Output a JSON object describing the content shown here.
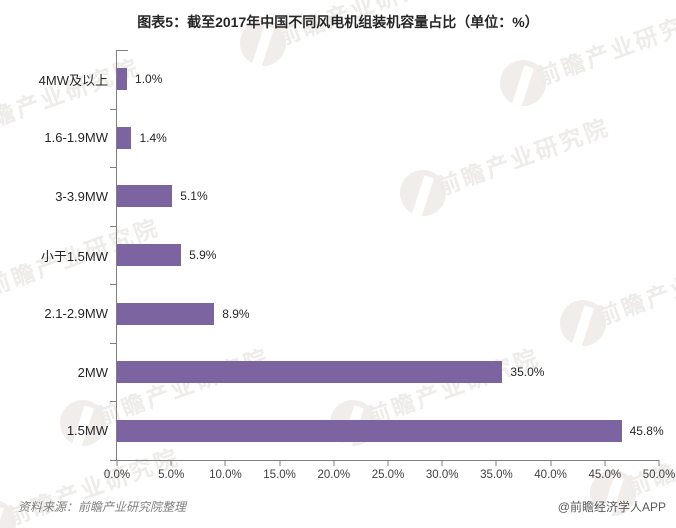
{
  "title": "图表5：截至2017年中国不同风电机组装机容量占比（单位：%）",
  "chart_data": {
    "type": "bar",
    "orientation": "horizontal",
    "title": "图表5：截至2017年中国不同风电机组装机容量占比（单位：%）",
    "categories": [
      "4MW及以上",
      "1.6-1.9MW",
      "3-3.9MW",
      "小于1.5MW",
      "2.1-2.9MW",
      "2MW",
      "1.5MW"
    ],
    "values": [
      1.0,
      1.4,
      5.1,
      5.9,
      8.9,
      35.0,
      45.8
    ],
    "value_labels": [
      "1.0%",
      "1.4%",
      "5.1%",
      "5.9%",
      "8.9%",
      "35.0%",
      "45.8%"
    ],
    "xlim": [
      0,
      50
    ],
    "x_ticks": [
      "0.0%",
      "5.0%",
      "10.0%",
      "15.0%",
      "20.0%",
      "25.0%",
      "30.0%",
      "35.0%",
      "40.0%",
      "45.0%",
      "50.0%"
    ],
    "xlabel": "",
    "ylabel": "",
    "grid": false,
    "legend": false,
    "bar_color": "#7B64A0"
  },
  "colors": {
    "bar": "#7B64A0",
    "axis": "#7F7F7F",
    "title_text": "#262626",
    "tick_text": "#404040",
    "footer_source": "#808080",
    "footer_credit": "#595959",
    "watermark": "#E9E6E2"
  },
  "footer": {
    "source": "资料来源：前瞻产业研究院整理",
    "credit": "@前瞻经济学人APP"
  },
  "watermark": {
    "text": "前瞻产业研究院"
  }
}
